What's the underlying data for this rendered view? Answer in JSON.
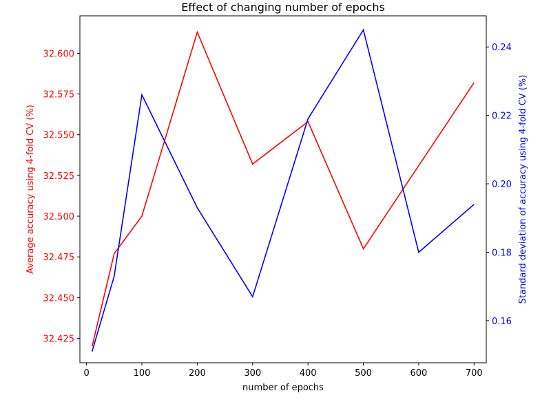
{
  "chart_data": {
    "type": "line",
    "title": "Effect of changing number of epochs",
    "xlabel": "number of epochs",
    "ylabel_left": "Average accuracy using 4-fold CV (%)",
    "ylabel_right": "Standard deviation of accuracy using 4-fold CV (%)",
    "x": [
      10,
      50,
      100,
      200,
      300,
      400,
      500,
      600,
      700
    ],
    "xlim": [
      -12,
      722
    ],
    "xticks": [
      0,
      100,
      200,
      300,
      400,
      500,
      600,
      700
    ],
    "ylim_left": [
      32.41,
      32.623
    ],
    "yticks_left": [
      32.425,
      32.45,
      32.475,
      32.5,
      32.525,
      32.55,
      32.575,
      32.6
    ],
    "ylim_right": [
      0.1477,
      0.2491
    ],
    "yticks_right": [
      0.16,
      0.18,
      0.2,
      0.22,
      0.24
    ],
    "grid": false,
    "legend": "none",
    "left_axis_color": "#ff0000",
    "right_axis_color": "#0000ff",
    "series": [
      {
        "axis": "left",
        "color": "#ff0000",
        "values": [
          32.42,
          32.477,
          32.5,
          32.613,
          32.532,
          32.558,
          32.48,
          32.531,
          32.582
        ]
      },
      {
        "axis": "right",
        "color": "#0000ff",
        "values": [
          0.151,
          0.173,
          0.226,
          0.193,
          0.167,
          0.219,
          0.245,
          0.18,
          0.194
        ]
      }
    ]
  }
}
